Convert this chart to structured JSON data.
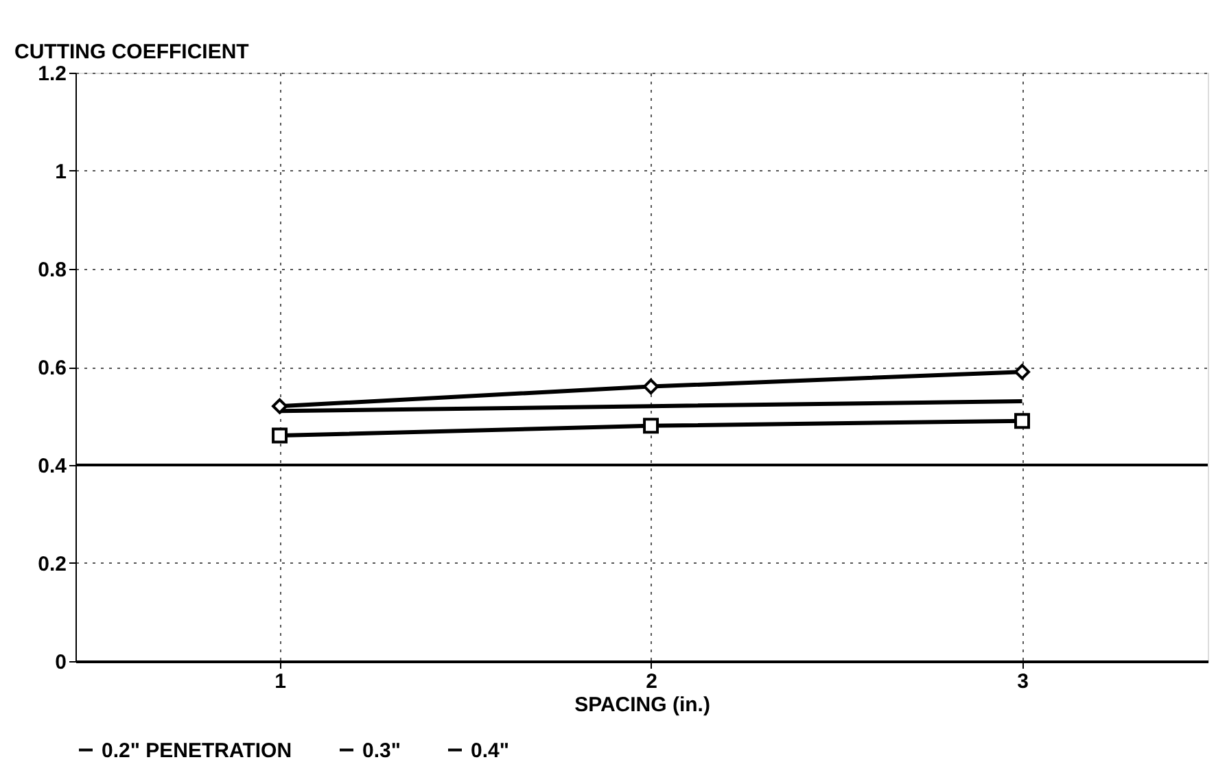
{
  "chart_data": {
    "type": "line",
    "ylabel": "CUTTING COEFFICIENT",
    "xlabel": "SPACING (in.)",
    "x": [
      1,
      2,
      3
    ],
    "xlim": [
      0.45,
      3.5
    ],
    "xticks": [
      1,
      2,
      3
    ],
    "ylim": [
      0,
      1.2
    ],
    "yticks": [
      0,
      0.2,
      0.4,
      0.6,
      0.8,
      1,
      1.2
    ],
    "grid": true,
    "legend": "bottom",
    "line_style": "solid",
    "ref_lines": [
      {
        "axis": "y",
        "value": 0.4,
        "label": null,
        "color": "#000000",
        "line_style": "solid"
      }
    ],
    "series": [
      {
        "name": "0.2\" PENETRATION",
        "color": "#000000",
        "marker": "square",
        "values": [
          0.46,
          0.48,
          0.49
        ]
      },
      {
        "name": "0.3\"",
        "color": "#000000",
        "marker": "none",
        "values": [
          0.51,
          0.52,
          0.53
        ]
      },
      {
        "name": "0.4\"",
        "color": "#000000",
        "marker": "diamond",
        "values": [
          0.52,
          0.56,
          0.59
        ]
      }
    ]
  }
}
